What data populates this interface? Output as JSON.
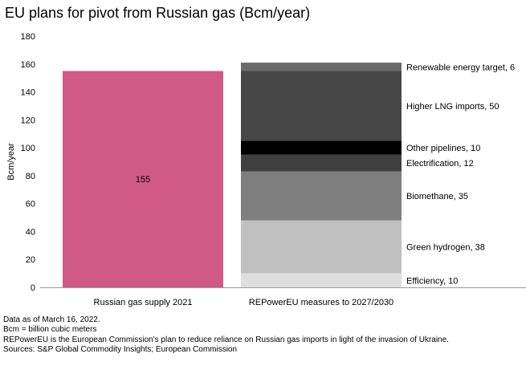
{
  "title": "EU plans for pivot from Russian gas (Bcm/year)",
  "chart_data": {
    "type": "bar",
    "stacked": true,
    "title": "EU plans for pivot from Russian gas (Bcm/year)",
    "xlabel": "",
    "ylabel": "Bcm/year",
    "ylim": [
      0,
      180
    ],
    "yticks": [
      0,
      20,
      40,
      60,
      80,
      100,
      120,
      140,
      160,
      180
    ],
    "grid": false,
    "categories": [
      "Russian gas supply 2021",
      "REPowerEU measures to 2027/2030"
    ],
    "series": [
      {
        "category": "Russian gas supply 2021",
        "value": 155,
        "label": "155",
        "color": "#d15a84"
      },
      {
        "category": "REPowerEU measures to 2027/2030",
        "name": "Efficiency",
        "value": 10,
        "label": "Efficiency, 10",
        "color": "#dedede"
      },
      {
        "category": "REPowerEU measures to 2027/2030",
        "name": "Green hydrogen",
        "value": 38,
        "label": "Green hydrogen, 38",
        "color": "#c0c0c0"
      },
      {
        "category": "REPowerEU measures to 2027/2030",
        "name": "Biomethane",
        "value": 35,
        "label": "Biomethane, 35",
        "color": "#7e7e7e"
      },
      {
        "category": "REPowerEU measures to 2027/2030",
        "name": "Electrification",
        "value": 12,
        "label": "Electrification, 12",
        "color": "#3f3f3f"
      },
      {
        "category": "REPowerEU measures to 2027/2030",
        "name": "Other pipelines",
        "value": 10,
        "label": "Other pipelines, 10",
        "color": "#000000"
      },
      {
        "category": "REPowerEU measures to 2027/2030",
        "name": "Higher LNG imports",
        "value": 50,
        "label": "Higher LNG imports, 50",
        "color": "#474747"
      },
      {
        "category": "REPowerEU measures to 2027/2030",
        "name": "Renewable energy target",
        "value": 6,
        "label": "Renewable energy target, 6",
        "color": "#6a6a6a"
      }
    ]
  },
  "notes": [
    "Data as of March 16, 2022.",
    "Bcm = billion cubic meters",
    "REPowerEU is the European Commission's plan to reduce reliance on Russian gas imports in light of the invasion of Ukraine.",
    "Sources: S&P Global Commodity Insights; European Commission"
  ]
}
